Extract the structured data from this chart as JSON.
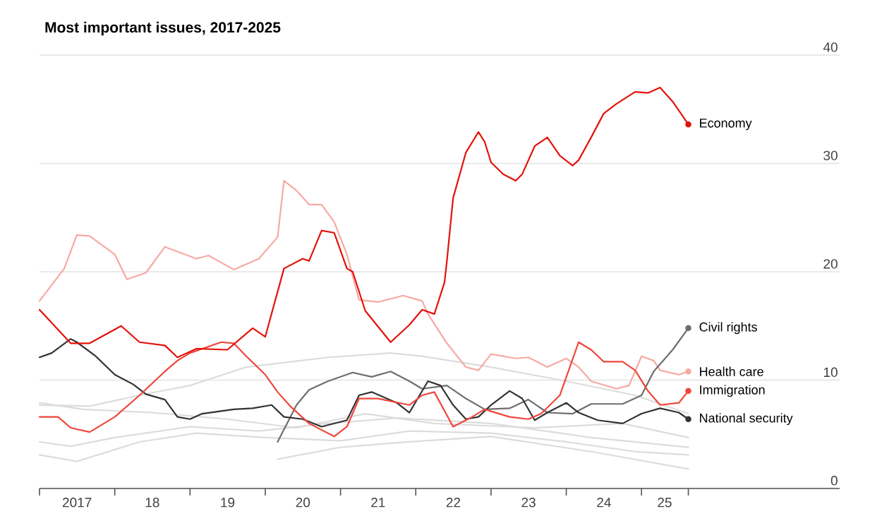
{
  "chart_data": {
    "type": "line",
    "title": "Most important issues, 2017-2025",
    "xlim": [
      "2017-01-01",
      "2027-08-20"
    ],
    "ylim": [
      0,
      40
    ],
    "yticks": [
      0,
      10,
      20,
      30,
      40
    ],
    "grid": "y",
    "line_style": "solid",
    "legend": "right",
    "xticks": [
      {
        "value": "2017-01-01",
        "label": null
      },
      {
        "value": "2017-07-02",
        "label": "2017"
      },
      {
        "value": "2018-01-01",
        "label": null
      },
      {
        "value": "2018-07-02",
        "label": "18"
      },
      {
        "value": "2019-01-01",
        "label": null
      },
      {
        "value": "2019-07-02",
        "label": "19"
      },
      {
        "value": "2020-01-01",
        "label": null
      },
      {
        "value": "2020-07-02",
        "label": "20"
      },
      {
        "value": "2021-01-01",
        "label": null
      },
      {
        "value": "2021-07-02",
        "label": "21"
      },
      {
        "value": "2022-01-01",
        "label": null
      },
      {
        "value": "2022-07-02",
        "label": "22"
      },
      {
        "value": "2023-01-01",
        "label": null
      },
      {
        "value": "2023-07-02",
        "label": "23"
      },
      {
        "value": "2024-01-01",
        "label": null
      },
      {
        "value": "2024-07-02",
        "label": "24"
      },
      {
        "value": "2025-01-01",
        "label": null
      },
      {
        "value": "2025-04-23",
        "label": "25"
      },
      {
        "value": "2025-08-16",
        "label": null
      }
    ],
    "series": [
      {
        "color": "#dcdcdc",
        "x": [
          "2017-01",
          "2017-09",
          "2018-05",
          "2019-01",
          "2019-10",
          "2020-11",
          "2021-09",
          "2022-02",
          "2023-01",
          "2024-01",
          "2024-12",
          "2025-08-16"
        ],
        "values": [
          7.7,
          7.6,
          8.6,
          9.5,
          11.2,
          12.1,
          12.5,
          12.2,
          11.2,
          9.9,
          8.6,
          6.9
        ]
      },
      {
        "color": "#dcdcdc",
        "x": [
          "2017-01",
          "2017-07",
          "2018-05",
          "2019-02",
          "2020-01",
          "2021-01",
          "2021-12",
          "2023-01",
          "2024-01",
          "2024-12",
          "2025-08-16"
        ],
        "values": [
          3.1,
          2.5,
          4.3,
          5.1,
          4.7,
          4.4,
          5.3,
          5.1,
          4.3,
          3.4,
          3.1
        ]
      },
      {
        "color": "#dcdcdc",
        "x": [
          "2017-01",
          "2017-06",
          "2018-01",
          "2019-01",
          "2019-12",
          "2020-11",
          "2021-10",
          "2023-01",
          "2024-05",
          "2025-08-16"
        ],
        "values": [
          4.3,
          3.9,
          4.7,
          5.7,
          5.3,
          6,
          6.5,
          6,
          4.7,
          3.8
        ]
      },
      {
        "color": "#dcdcdc",
        "x": [
          "2020-03",
          "2021-01",
          "2021-12",
          "2023-01",
          "2024-05",
          "2025-08-16"
        ],
        "values": [
          2.7,
          3.8,
          4.3,
          4.8,
          3.4,
          1.8
        ]
      },
      {
        "color": "#dcdcdc",
        "x": [
          "2017-01",
          "2017-08",
          "2018-07",
          "2019-07",
          "2020-06",
          "2021-05",
          "2022-04",
          "2023-08",
          "2024-10",
          "2025-08-16"
        ],
        "values": [
          7.9,
          7.3,
          7,
          6.4,
          5.6,
          6.9,
          6,
          5.6,
          6,
          4.7
        ]
      },
      {
        "name": "Health care",
        "color": "#f6a9a3",
        "x": [
          "2017-01",
          "2017-05",
          "2017-07",
          "2017-09",
          "2018-01",
          "2018-03",
          "2018-06",
          "2018-09",
          "2019-02",
          "2019-04",
          "2019-08",
          "2019-12",
          "2020-03",
          "2020-04",
          "2020-06",
          "2020-08",
          "2020-10",
          "2020-12",
          "2021-02",
          "2021-04",
          "2021-07",
          "2021-11",
          "2022-02",
          "2022-03",
          "2022-06",
          "2022-09",
          "2022-11",
          "2023-01",
          "2023-05",
          "2023-07",
          "2023-10",
          "2024-01",
          "2024-03",
          "2024-05",
          "2024-09",
          "2024-11",
          "2025-01",
          "2025-03",
          "2025-04",
          "2025-07",
          "2025-08-16"
        ],
        "values": [
          17.3,
          20.3,
          23.4,
          23.3,
          21.6,
          19.3,
          19.9,
          22.3,
          21.2,
          21.5,
          20.2,
          21.2,
          23.2,
          28.4,
          27.5,
          26.2,
          26.2,
          24.6,
          21.6,
          17.4,
          17.2,
          17.8,
          17.3,
          16.1,
          13.4,
          11.2,
          10.9,
          12.4,
          12,
          12.1,
          11.2,
          12,
          11.2,
          9.9,
          9.2,
          9.5,
          12.2,
          11.8,
          10.9,
          10.5,
          10.8
        ]
      },
      {
        "name": "Civil rights",
        "color": "#6e6e6e",
        "x": [
          "2020-03",
          "2020-06",
          "2020-08",
          "2020-11",
          "2021-03",
          "2021-06",
          "2021-09",
          "2021-12",
          "2022-02",
          "2022-06",
          "2022-09",
          "2022-12",
          "2023-04",
          "2023-07",
          "2023-10",
          "2024-02",
          "2024-05",
          "2024-10",
          "2025-01",
          "2025-03",
          "2025-06",
          "2025-08-16"
        ],
        "values": [
          4.3,
          7.7,
          9.1,
          9.9,
          10.7,
          10.3,
          10.8,
          9.9,
          9.2,
          9.5,
          8.3,
          7.3,
          7.4,
          8.2,
          7,
          6.9,
          7.8,
          7.8,
          8.6,
          10.8,
          12.8,
          14.8
        ]
      },
      {
        "name": "National security",
        "color": "#333333",
        "x": [
          "2017-01",
          "2017-03",
          "2017-06",
          "2017-07",
          "2017-10",
          "2018-01",
          "2018-04",
          "2018-06",
          "2018-09",
          "2018-11",
          "2019-01",
          "2019-03",
          "2019-08",
          "2019-11",
          "2020-02",
          "2020-04",
          "2020-07",
          "2020-10",
          "2021-02",
          "2021-04",
          "2021-06",
          "2021-10",
          "2021-12",
          "2022-03",
          "2022-05",
          "2022-07",
          "2022-09",
          "2022-11",
          "2023-01",
          "2023-04",
          "2023-06",
          "2023-08",
          "2023-10",
          "2024-01",
          "2024-03",
          "2024-06",
          "2024-10",
          "2025-01",
          "2025-04",
          "2025-07",
          "2025-08-16"
        ],
        "values": [
          12.1,
          12.5,
          13.8,
          13.5,
          12.2,
          10.5,
          9.6,
          8.7,
          8.2,
          6.6,
          6.4,
          6.9,
          7.3,
          7.4,
          7.7,
          6.6,
          6.4,
          5.7,
          6.3,
          8.6,
          8.9,
          7.9,
          7,
          9.9,
          9.5,
          7.7,
          6.4,
          6.6,
          7.7,
          9,
          8.3,
          6.3,
          7,
          7.9,
          7,
          6.3,
          6,
          6.9,
          7.4,
          7,
          6.4
        ]
      },
      {
        "name": "Immigration",
        "color": "#f0463c",
        "x": [
          "2017-01",
          "2017-04",
          "2017-06",
          "2017-09",
          "2018-01",
          "2018-05",
          "2018-09",
          "2018-11",
          "2019-01",
          "2019-06",
          "2019-08",
          "2019-10",
          "2020-01",
          "2020-03",
          "2020-05",
          "2020-08",
          "2020-12",
          "2021-02",
          "2021-04",
          "2021-07",
          "2021-12",
          "2022-02",
          "2022-04",
          "2022-07",
          "2022-10",
          "2022-12",
          "2023-04",
          "2023-07",
          "2023-09",
          "2023-12",
          "2024-03",
          "2024-05",
          "2024-07",
          "2024-10",
          "2024-12",
          "2025-02",
          "2025-04",
          "2025-07",
          "2025-08-16"
        ],
        "values": [
          6.6,
          6.6,
          5.6,
          5.2,
          6.6,
          8.6,
          10.8,
          11.8,
          12.5,
          13.5,
          13.4,
          12.2,
          10.5,
          8.9,
          7.6,
          6,
          4.8,
          5.7,
          8.3,
          8.3,
          7.7,
          8.6,
          8.9,
          5.7,
          6.6,
          7.3,
          6.6,
          6.4,
          6.9,
          8.6,
          13.5,
          12.8,
          11.7,
          11.7,
          10.9,
          9,
          7.7,
          7.9,
          9
        ]
      },
      {
        "name": "Economy",
        "color": "#e3120b",
        "x": [
          "2017-01",
          "2017-06",
          "2017-09",
          "2018-02",
          "2018-05",
          "2018-09",
          "2018-11",
          "2019-02",
          "2019-07",
          "2019-11",
          "2020-01",
          "2020-04",
          "2020-07",
          "2020-08",
          "2020-10",
          "2020-12",
          "2021-02",
          "2021-03",
          "2021-05",
          "2021-09",
          "2021-12",
          "2022-02",
          "2022-04",
          "2022-05-20",
          "2022-06",
          "2022-07",
          "2022-09",
          "2022-11",
          "2022-12",
          "2023-01",
          "2023-03",
          "2023-05",
          "2023-06",
          "2023-08",
          "2023-10",
          "2023-12",
          "2024-02",
          "2024-03",
          "2024-05",
          "2024-07",
          "2024-09",
          "2024-12",
          "2025-02",
          "2025-04",
          "2025-06",
          "2025-08-16"
        ],
        "values": [
          16.5,
          13.4,
          13.4,
          15,
          13.5,
          13.2,
          12.1,
          12.9,
          12.8,
          14.8,
          14,
          20.3,
          21.2,
          21,
          23.8,
          23.6,
          20.3,
          20,
          16.4,
          13.5,
          15.1,
          16.5,
          16.1,
          19,
          21,
          26.8,
          31,
          32.9,
          32,
          30.1,
          29,
          28.4,
          29,
          31.6,
          32.4,
          30.7,
          29.8,
          30.3,
          32.4,
          34.6,
          35.5,
          36.6,
          36.5,
          37,
          35.7,
          33.6
        ]
      }
    ]
  }
}
